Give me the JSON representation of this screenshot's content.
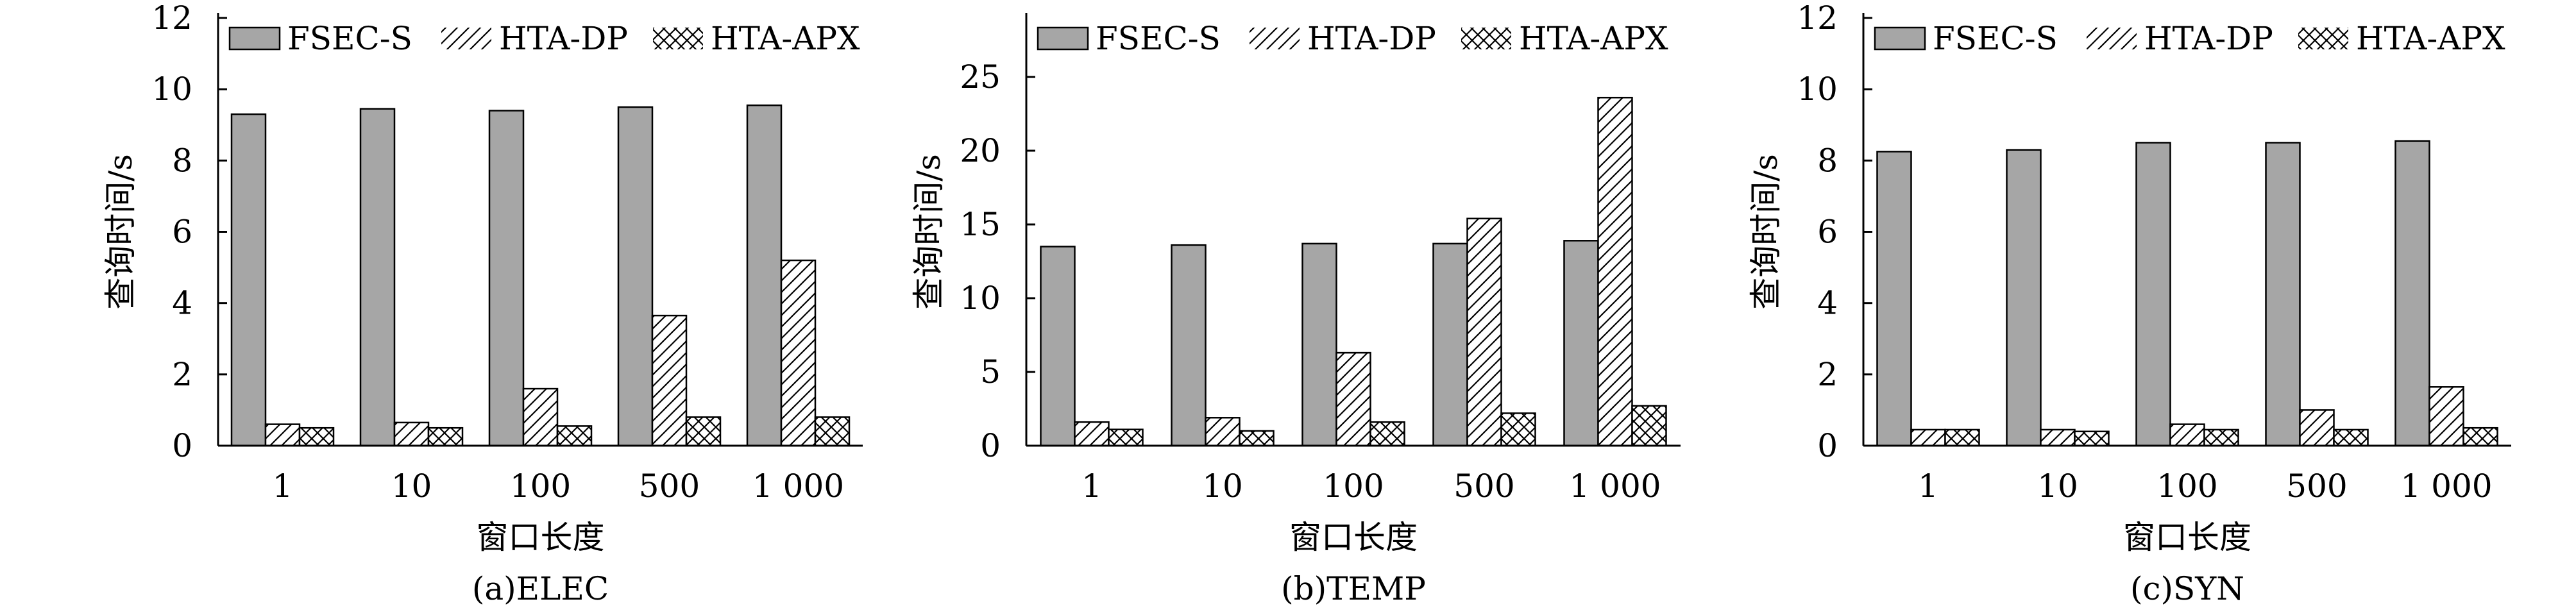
{
  "legend_labels": [
    "FSEC-S",
    "HTA-DP",
    "HTA-APX"
  ],
  "chart_data": [
    {
      "type": "bar",
      "caption": "(a)ELEC",
      "xlabel": "窗口长度",
      "ylabel": "查询时间/s",
      "categories": [
        "1",
        "10",
        "100",
        "500",
        "1 000"
      ],
      "ylim": [
        0,
        12
      ],
      "yticks": [
        0,
        2,
        4,
        6,
        8,
        10,
        12
      ],
      "grid": false,
      "legend": "top",
      "series": [
        {
          "name": "FSEC-S",
          "values": [
            9.3,
            9.45,
            9.4,
            9.5,
            9.55
          ],
          "pattern": "solid",
          "color": "#a6a6a6"
        },
        {
          "name": "HTA-DP",
          "values": [
            0.6,
            0.65,
            1.6,
            3.65,
            5.2
          ],
          "pattern": "hatch",
          "color": "#000000"
        },
        {
          "name": "HTA-APX",
          "values": [
            0.5,
            0.5,
            0.55,
            0.8,
            0.8
          ],
          "pattern": "crosshatch",
          "color": "#000000"
        }
      ]
    },
    {
      "type": "bar",
      "caption": "(b)TEMP",
      "xlabel": "窗口长度",
      "ylabel": "查询时间/s",
      "categories": [
        "1",
        "10",
        "100",
        "500",
        "1 000"
      ],
      "ylim": [
        0,
        29
      ],
      "yticks": [
        0,
        5,
        10,
        15,
        20,
        25
      ],
      "grid": false,
      "legend": "top",
      "series": [
        {
          "name": "FSEC-S",
          "values": [
            13.5,
            13.6,
            13.7,
            13.7,
            13.9
          ],
          "pattern": "solid",
          "color": "#a6a6a6"
        },
        {
          "name": "HTA-DP",
          "values": [
            1.6,
            1.9,
            6.3,
            15.4,
            23.6
          ],
          "pattern": "hatch",
          "color": "#000000"
        },
        {
          "name": "HTA-APX",
          "values": [
            1.1,
            1.0,
            1.6,
            2.2,
            2.7
          ],
          "pattern": "crosshatch",
          "color": "#000000"
        }
      ]
    },
    {
      "type": "bar",
      "caption": "(c)SYN",
      "xlabel": "窗口长度",
      "ylabel": "查询时间/s",
      "categories": [
        "1",
        "10",
        "100",
        "500",
        "1 000"
      ],
      "ylim": [
        0,
        12
      ],
      "yticks": [
        0,
        2,
        4,
        6,
        8,
        10,
        12
      ],
      "grid": false,
      "legend": "top",
      "series": [
        {
          "name": "FSEC-S",
          "values": [
            8.25,
            8.3,
            8.5,
            8.5,
            8.55
          ],
          "pattern": "solid",
          "color": "#a6a6a6"
        },
        {
          "name": "HTA-DP",
          "values": [
            0.45,
            0.45,
            0.6,
            1.0,
            1.65
          ],
          "pattern": "hatch",
          "color": "#000000"
        },
        {
          "name": "HTA-APX",
          "values": [
            0.45,
            0.4,
            0.45,
            0.45,
            0.5
          ],
          "pattern": "crosshatch",
          "color": "#000000"
        }
      ]
    }
  ]
}
